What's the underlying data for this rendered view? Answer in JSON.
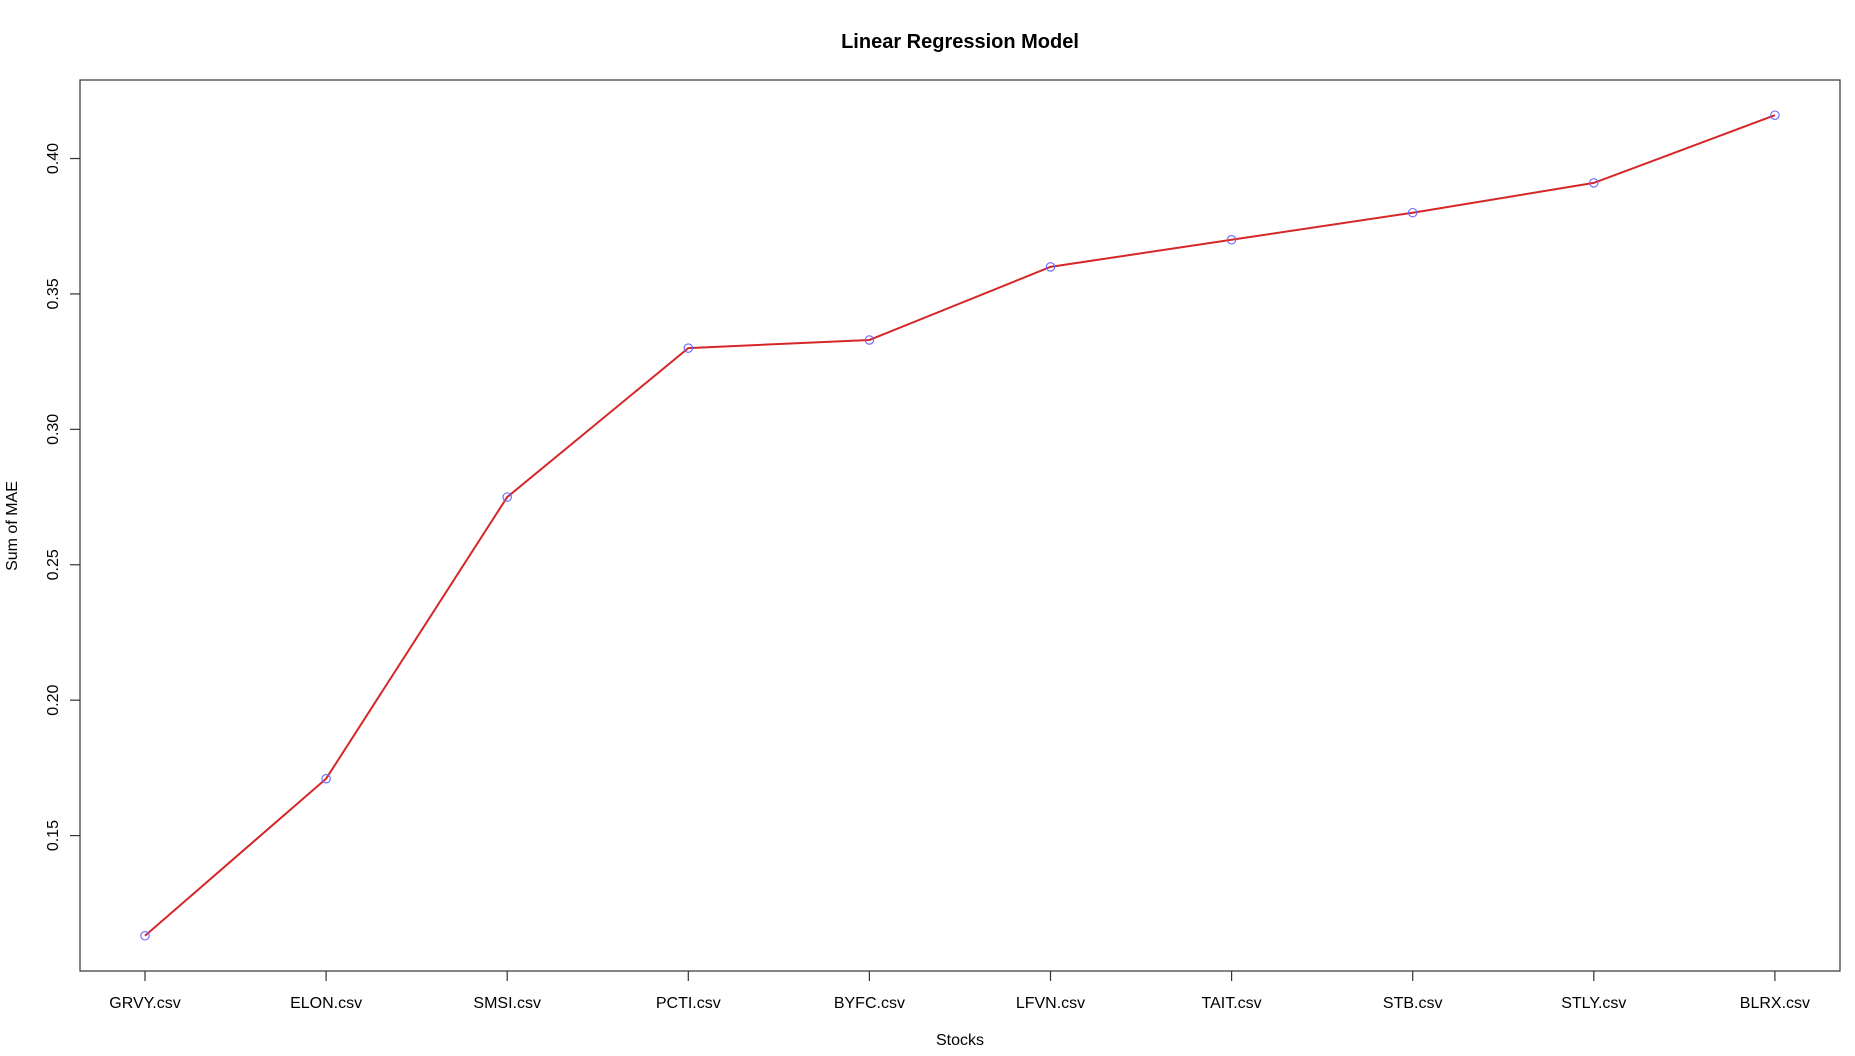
{
  "chart_data": {
    "type": "line",
    "title": "Linear Regression Model",
    "xlabel": "Stocks",
    "ylabel": "Sum of MAE",
    "categories": [
      "GRVY.csv",
      "ELON.csv",
      "SMSI.csv",
      "PCTI.csv",
      "BYFC.csv",
      "LFVN.csv",
      "TAIT.csv",
      "STB.csv",
      "STLY.csv",
      "BLRX.csv"
    ],
    "values": [
      0.113,
      0.171,
      0.275,
      0.33,
      0.333,
      0.36,
      0.37,
      0.38,
      0.391,
      0.416
    ],
    "yticks": [
      0.15,
      0.2,
      0.25,
      0.3,
      0.35,
      0.4
    ],
    "ytick_labels": [
      "0.15",
      "0.20",
      "0.25",
      "0.30",
      "0.35",
      "0.40"
    ],
    "ylim": [
      0.1,
      0.429
    ],
    "grid": false,
    "line_color": "#d62728",
    "marker_color": "#6666ff"
  }
}
